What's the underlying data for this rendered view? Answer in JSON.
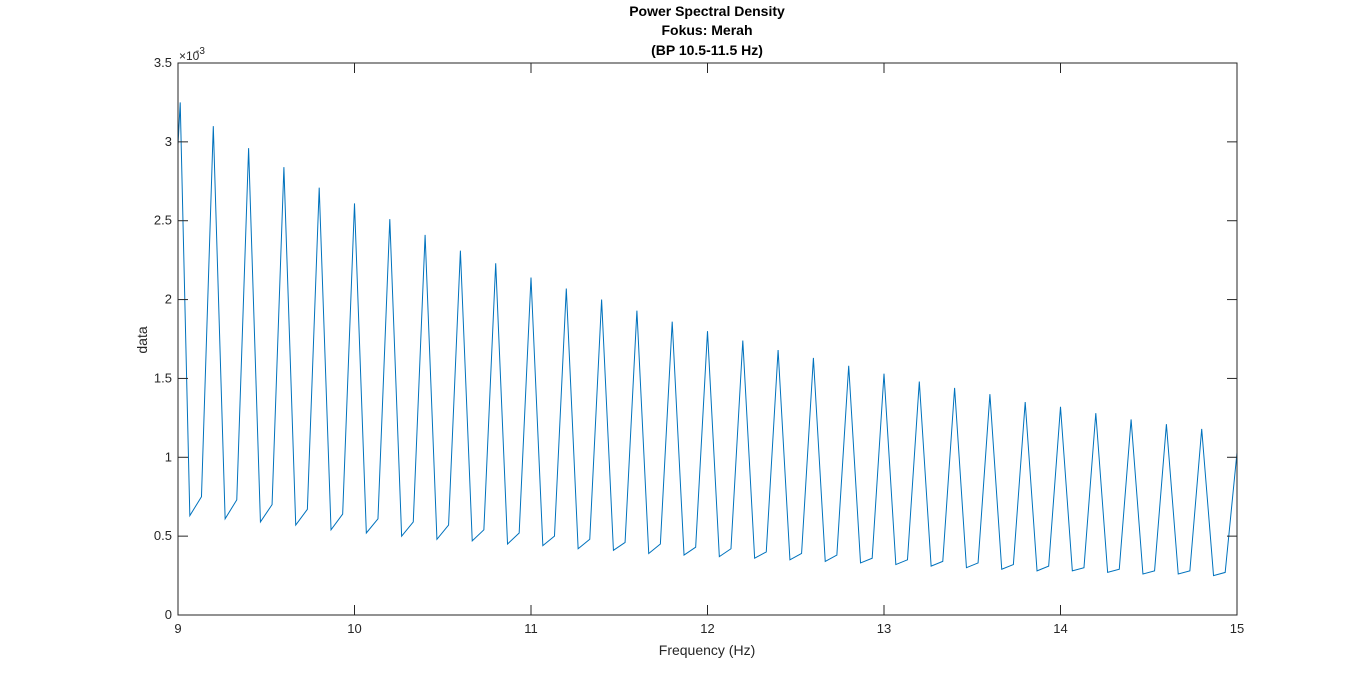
{
  "chart_data": {
    "type": "line",
    "title": [
      "Power Spectral Density",
      "Fokus: Merah",
      "(BP 10.5-11.5 Hz)"
    ],
    "xlabel": "Frequency (Hz)",
    "ylabel": "data",
    "xlim": [
      9,
      15
    ],
    "ylim": [
      0,
      0.0035
    ],
    "x_ticks": [
      9,
      10,
      11,
      12,
      13,
      14,
      15
    ],
    "x_tick_labels": [
      "9",
      "10",
      "11",
      "12",
      "13",
      "14",
      "15"
    ],
    "y_ticks": [
      0,
      0.0005,
      0.001,
      0.0015,
      0.002,
      0.0025,
      0.003,
      0.0035
    ],
    "y_tick_labels": [
      "0",
      "0.5",
      "1",
      "1.5",
      "2",
      "2.5",
      "3",
      "3.5"
    ],
    "y_exponent": {
      "base": "×10",
      "power": "-3"
    },
    "grid": false,
    "legend": "none",
    "line_color": "#0072BD",
    "series": [
      {
        "x": [
          9.0,
          9.0125,
          9.067,
          9.133,
          9.2,
          9.267,
          9.333,
          9.4,
          9.467,
          9.533,
          9.6,
          9.667,
          9.733,
          9.8,
          9.867,
          9.933,
          10.0,
          10.067,
          10.133,
          10.2,
          10.267,
          10.333,
          10.4,
          10.467,
          10.533,
          10.6,
          10.667,
          10.733,
          10.8,
          10.867,
          10.933,
          11.0,
          11.067,
          11.133,
          11.2,
          11.267,
          11.333,
          11.4,
          11.467,
          11.533,
          11.6,
          11.667,
          11.733,
          11.8,
          11.867,
          11.933,
          12.0,
          12.067,
          12.133,
          12.2,
          12.267,
          12.333,
          12.4,
          12.467,
          12.533,
          12.6,
          12.667,
          12.733,
          12.8,
          12.867,
          12.933,
          13.0,
          13.067,
          13.133,
          13.2,
          13.267,
          13.333,
          13.4,
          13.467,
          13.533,
          13.6,
          13.667,
          13.733,
          13.8,
          13.867,
          13.933,
          14.0,
          14.067,
          14.133,
          14.2,
          14.267,
          14.333,
          14.4,
          14.467,
          14.533,
          14.6,
          14.667,
          14.733,
          14.8,
          14.867,
          14.933,
          15.0
        ],
        "y": [
          0.00298,
          0.00325,
          0.00063,
          0.00075,
          0.0031,
          0.00061,
          0.00073,
          0.00296,
          0.00059,
          0.0007,
          0.00284,
          0.00057,
          0.00067,
          0.00271,
          0.00054,
          0.00064,
          0.00261,
          0.00052,
          0.00061,
          0.00251,
          0.0005,
          0.00059,
          0.00241,
          0.00048,
          0.00057,
          0.00231,
          0.00047,
          0.00054,
          0.00223,
          0.00045,
          0.00052,
          0.00214,
          0.00044,
          0.0005,
          0.00207,
          0.00042,
          0.00048,
          0.002,
          0.00041,
          0.00046,
          0.00193,
          0.00039,
          0.00045,
          0.00186,
          0.00038,
          0.00043,
          0.0018,
          0.00037,
          0.00042,
          0.00174,
          0.00036,
          0.0004,
          0.00168,
          0.00035,
          0.00039,
          0.00163,
          0.00034,
          0.00038,
          0.00158,
          0.00033,
          0.00036,
          0.00153,
          0.00032,
          0.00035,
          0.00148,
          0.00031,
          0.00034,
          0.00144,
          0.0003,
          0.00033,
          0.0014,
          0.00029,
          0.00032,
          0.00135,
          0.00028,
          0.00031,
          0.00132,
          0.00028,
          0.0003,
          0.00128,
          0.00027,
          0.00029,
          0.00124,
          0.00026,
          0.00028,
          0.00121,
          0.00026,
          0.00028,
          0.00118,
          0.00025,
          0.00027,
          0.00103
        ]
      }
    ]
  }
}
